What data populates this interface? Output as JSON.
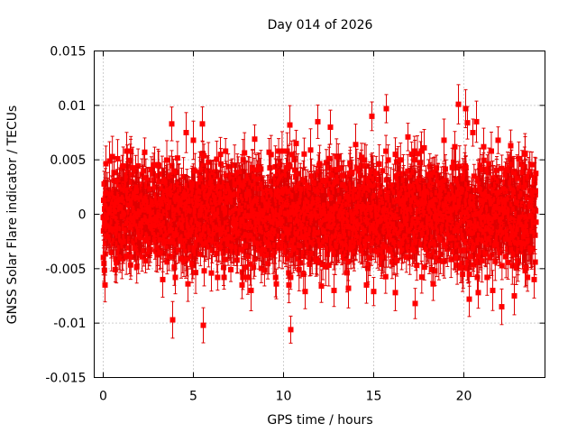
{
  "chart_data": {
    "type": "scatter",
    "title": "Day 014 of 2026",
    "xlabel": "GPS time / hours",
    "ylabel": "GNSS Solar Flare indicator / TECUs",
    "xlim": [
      -0.5,
      24.5
    ],
    "ylim": [
      -0.015,
      0.015
    ],
    "xticks": [
      0,
      5,
      10,
      15,
      20
    ],
    "xtick_labels": [
      "0",
      "5",
      "10",
      "15",
      "20"
    ],
    "yticks": [
      -0.015,
      -0.01,
      -0.005,
      0,
      0.005,
      0.01,
      0.015
    ],
    "ytick_labels": [
      "-0.015",
      "-0.01",
      "-0.005",
      "0",
      "0.005",
      "0.01",
      "0.015"
    ],
    "grid": true,
    "marker_color": "#ff0000",
    "series": [
      {
        "name": "solar flare indicator",
        "note": "Dense band of ~2880 points (30 s cadence) spanning 0-24 h, mostly within ±0.005 TECU, each with ~±0.0015 error bar",
        "band": {
          "x_start": 0,
          "x_end": 24,
          "count": 2880,
          "typical_abs": 0.0045,
          "typical_err": 0.0015
        },
        "outliers": [
          {
            "x": 0.1,
            "y": -0.0065
          },
          {
            "x": 0.8,
            "y": 0.0051
          },
          {
            "x": 1.3,
            "y": 0.0058
          },
          {
            "x": 2.3,
            "y": 0.0057
          },
          {
            "x": 3.3,
            "y": -0.006
          },
          {
            "x": 3.8,
            "y": 0.0083
          },
          {
            "x": 3.85,
            "y": -0.0097
          },
          {
            "x": 4.0,
            "y": -0.0058
          },
          {
            "x": 4.6,
            "y": 0.0075
          },
          {
            "x": 4.7,
            "y": -0.0064
          },
          {
            "x": 5.0,
            "y": 0.0068
          },
          {
            "x": 5.5,
            "y": 0.0083
          },
          {
            "x": 5.55,
            "y": -0.0102
          },
          {
            "x": 5.6,
            "y": -0.0052
          },
          {
            "x": 6.0,
            "y": -0.0054
          },
          {
            "x": 6.5,
            "y": 0.0055
          },
          {
            "x": 7.7,
            "y": -0.0065
          },
          {
            "x": 8.2,
            "y": -0.007
          },
          {
            "x": 8.4,
            "y": 0.0069
          },
          {
            "x": 9.2,
            "y": 0.0057
          },
          {
            "x": 9.6,
            "y": -0.0064
          },
          {
            "x": 10.3,
            "y": -0.0065
          },
          {
            "x": 10.35,
            "y": 0.0082
          },
          {
            "x": 10.4,
            "y": -0.0106
          },
          {
            "x": 10.7,
            "y": 0.0065
          },
          {
            "x": 11.2,
            "y": -0.0071
          },
          {
            "x": 11.5,
            "y": 0.0059
          },
          {
            "x": 11.9,
            "y": 0.0085
          },
          {
            "x": 12.1,
            "y": -0.0066
          },
          {
            "x": 12.6,
            "y": 0.008
          },
          {
            "x": 12.8,
            "y": -0.007
          },
          {
            "x": 13.6,
            "y": -0.0068
          },
          {
            "x": 14.0,
            "y": 0.0064
          },
          {
            "x": 14.6,
            "y": -0.0065
          },
          {
            "x": 14.9,
            "y": 0.009
          },
          {
            "x": 15.0,
            "y": -0.0071
          },
          {
            "x": 15.7,
            "y": 0.0097
          },
          {
            "x": 16.2,
            "y": 0.0055
          },
          {
            "x": 16.2,
            "y": -0.0072
          },
          {
            "x": 16.9,
            "y": 0.0071
          },
          {
            "x": 17.3,
            "y": -0.0082
          },
          {
            "x": 17.8,
            "y": 0.0061
          },
          {
            "x": 18.3,
            "y": -0.0064
          },
          {
            "x": 18.9,
            "y": 0.0068
          },
          {
            "x": 19.5,
            "y": 0.0062
          },
          {
            "x": 19.7,
            "y": 0.0101
          },
          {
            "x": 20.1,
            "y": 0.0097
          },
          {
            "x": 20.2,
            "y": 0.0084
          },
          {
            "x": 20.3,
            "y": -0.0078
          },
          {
            "x": 20.5,
            "y": 0.0075
          },
          {
            "x": 20.7,
            "y": 0.0085
          },
          {
            "x": 20.8,
            "y": -0.0072
          },
          {
            "x": 21.1,
            "y": 0.0062
          },
          {
            "x": 21.6,
            "y": -0.007
          },
          {
            "x": 21.9,
            "y": 0.0068
          },
          {
            "x": 22.1,
            "y": -0.0085
          },
          {
            "x": 22.6,
            "y": 0.0063
          },
          {
            "x": 22.8,
            "y": -0.0075
          },
          {
            "x": 23.4,
            "y": 0.0056
          },
          {
            "x": 23.9,
            "y": -0.006
          }
        ]
      }
    ]
  }
}
